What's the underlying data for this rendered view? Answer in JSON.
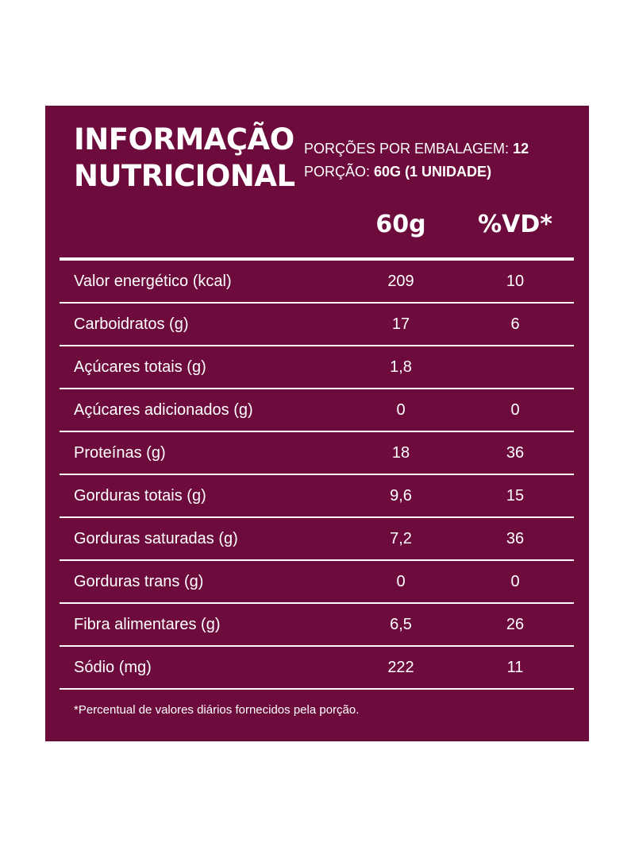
{
  "title": {
    "line1": "INFORMAÇÃO",
    "line2": "NUTRICIONAL"
  },
  "serving": {
    "portions_label": "PORÇÕES POR EMBALAGEM:",
    "portions_value": "12",
    "portion_label": "PORÇÃO:",
    "portion_value": "60G (1 UNIDADE)"
  },
  "columns": {
    "amount": "60g",
    "dv": "%VD*"
  },
  "rows": [
    {
      "label": "Valor energético (kcal)",
      "value": "209",
      "dv": "10"
    },
    {
      "label": "Carboidratos (g)",
      "value": "17",
      "dv": "6"
    },
    {
      "label": "Açúcares totais (g)",
      "value": "1,8",
      "dv": ""
    },
    {
      "label": "Açúcares adicionados (g)",
      "value": "0",
      "dv": "0"
    },
    {
      "label": "Proteínas (g)",
      "value": "18",
      "dv": "36"
    },
    {
      "label": "Gorduras totais (g)",
      "value": "9,6",
      "dv": "15"
    },
    {
      "label": "Gorduras saturadas (g)",
      "value": "7,2",
      "dv": "36"
    },
    {
      "label": "Gorduras trans (g)",
      "value": "0",
      "dv": "0"
    },
    {
      "label": "Fibra alimentares (g)",
      "value": "6,5",
      "dv": "26"
    },
    {
      "label": "Sódio (mg)",
      "value": "222",
      "dv": "11"
    }
  ],
  "footnote": "*Percentual de valores diários fornecidos pela porção.",
  "colors": {
    "background": "#6d0b3c",
    "text": "#ffffff"
  }
}
